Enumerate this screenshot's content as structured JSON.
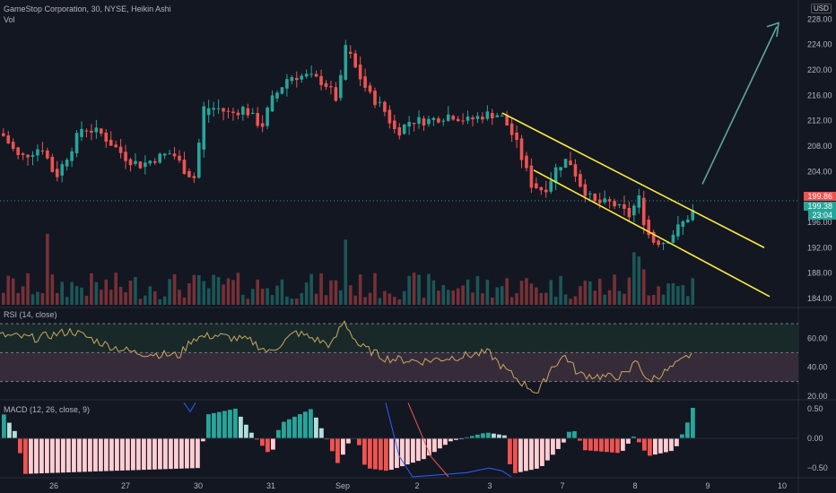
{
  "header": {
    "symbol_line": "GameStop Corporation, 30, NYSE, Heikin Ashi",
    "volume_label": "Vol",
    "currency": "USD"
  },
  "price_axis": {
    "ticks": [
      "228.00",
      "224.00",
      "220.00",
      "216.00",
      "212.00",
      "208.00",
      "204.00",
      "196.00",
      "192.00",
      "188.00",
      "184.00"
    ],
    "tick_values": [
      228,
      224,
      220,
      216,
      212,
      208,
      204,
      196,
      192,
      188,
      184
    ],
    "range": [
      183,
      231
    ],
    "price_labels": {
      "prev_close": "199.86",
      "last_price": "199.38",
      "countdown": "23:04"
    }
  },
  "rsi": {
    "label": "RSI (14, close)",
    "ticks": [
      "60.00",
      "40.00",
      "20.00"
    ],
    "tick_values": [
      60,
      40,
      20
    ],
    "range": [
      18,
      80
    ],
    "levels": [
      70,
      50,
      30
    ]
  },
  "macd": {
    "label": "MACD (12, 26, close, 9)",
    "ticks": [
      "0.50",
      "0.00",
      "−0.50"
    ],
    "tick_values": [
      0.5,
      0.0,
      -0.5
    ],
    "range": [
      -0.65,
      0.62
    ]
  },
  "time_axis": {
    "labels": [
      "26",
      "27",
      "30",
      "31",
      "Sep",
      "2",
      "3",
      "7",
      "8",
      "9",
      "10"
    ]
  },
  "colors": {
    "background": "#131722",
    "up": "#26a69a",
    "down": "#ef5350",
    "up_light": "#b2dfdb",
    "down_light": "#ffcdd2",
    "channel": "#ffeb3b",
    "arrow": "#5aa89e",
    "rsi_line": "#c8a860",
    "rsi_band": "#3a2b3b",
    "grid": "#1e222d",
    "text": "#b2b5be"
  },
  "chart_data": {
    "type": "candlestick",
    "title": "GameStop Corporation, 30, NYSE, Heikin Ashi",
    "ylim": [
      183,
      231
    ],
    "x_labels": [
      "26",
      "27",
      "30",
      "31",
      "Sep",
      "2",
      "3",
      "7",
      "8",
      "9",
      "10"
    ],
    "last_price": 199.38,
    "prev_close": 199.86,
    "annotations": [
      "descending parallel channel (yellow)",
      "upward projection arrow"
    ],
    "rsi_ylim": [
      18,
      80
    ],
    "macd_ylim": [
      -0.65,
      0.62
    ]
  }
}
